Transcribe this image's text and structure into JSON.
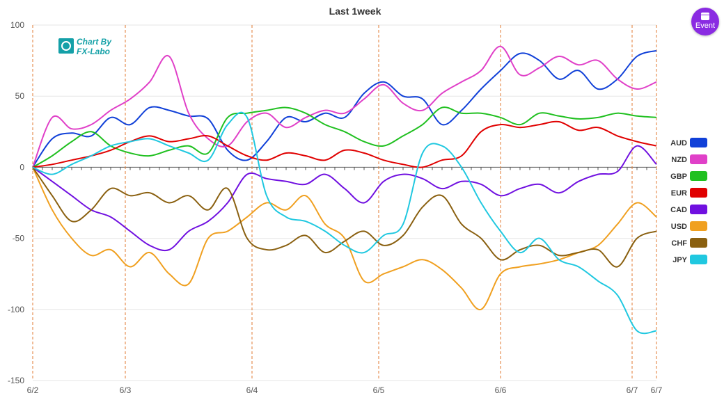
{
  "chart_data": {
    "type": "line",
    "title": "Last 1week",
    "ylim": [
      -150,
      100
    ],
    "yticks": [
      100,
      50,
      0,
      -50,
      -100,
      -150
    ],
    "xlabels": [
      "6/2",
      "6/3",
      "6/4",
      "6/5",
      "6/6",
      "6/7",
      "6/7"
    ],
    "x": [
      0,
      4,
      8,
      12,
      16,
      20,
      24,
      28,
      32,
      36,
      40,
      44,
      48,
      52,
      56,
      60,
      64,
      68,
      72,
      76,
      80,
      84,
      88,
      92,
      96,
      100,
      104,
      108,
      112,
      116,
      120,
      124,
      128
    ],
    "x_max": 128,
    "separators": [
      0,
      19,
      45,
      71,
      96,
      123,
      128
    ],
    "series": [
      {
        "name": "AUD",
        "color": "#1040d8",
        "values": [
          0,
          20,
          24,
          22,
          35,
          30,
          42,
          40,
          36,
          34,
          12,
          5,
          18,
          35,
          32,
          38,
          35,
          52,
          60,
          50,
          48,
          30,
          40,
          55,
          68,
          80,
          75,
          62,
          68,
          55,
          62,
          78,
          82
        ]
      },
      {
        "name": "NZD",
        "color": "#e040c8",
        "values": [
          0,
          35,
          27,
          30,
          40,
          48,
          60,
          78,
          38,
          20,
          15,
          32,
          38,
          28,
          35,
          40,
          38,
          48,
          58,
          45,
          40,
          52,
          60,
          68,
          85,
          65,
          70,
          78,
          72,
          75,
          62,
          55,
          60
        ]
      },
      {
        "name": "GBP",
        "color": "#20c020",
        "values": [
          0,
          8,
          18,
          25,
          15,
          10,
          8,
          12,
          15,
          10,
          35,
          38,
          40,
          42,
          38,
          30,
          25,
          18,
          15,
          22,
          30,
          42,
          38,
          38,
          35,
          30,
          38,
          36,
          34,
          35,
          38,
          36,
          35
        ]
      },
      {
        "name": "EUR",
        "color": "#e00000",
        "values": [
          0,
          2,
          5,
          8,
          12,
          18,
          22,
          18,
          20,
          22,
          15,
          8,
          5,
          10,
          8,
          5,
          12,
          10,
          5,
          2,
          0,
          5,
          8,
          25,
          30,
          28,
          30,
          32,
          26,
          28,
          22,
          18,
          15
        ]
      },
      {
        "name": "CAD",
        "color": "#7010e0",
        "values": [
          0,
          -10,
          -20,
          -30,
          -35,
          -45,
          -55,
          -58,
          -45,
          -38,
          -25,
          -5,
          -8,
          -10,
          -12,
          -5,
          -15,
          -25,
          -10,
          -5,
          -8,
          -15,
          -10,
          -12,
          -20,
          -15,
          -12,
          -18,
          -10,
          -5,
          -3,
          15,
          2
        ]
      },
      {
        "name": "USD",
        "color": "#f0a020",
        "values": [
          0,
          -30,
          -50,
          -62,
          -58,
          -70,
          -60,
          -75,
          -82,
          -50,
          -45,
          -35,
          -25,
          -30,
          -20,
          -40,
          -50,
          -80,
          -75,
          -70,
          -65,
          -72,
          -85,
          -100,
          -75,
          -70,
          -68,
          -65,
          -60,
          -55,
          -40,
          -25,
          -35
        ]
      },
      {
        "name": "CHF",
        "color": "#8a6010",
        "values": [
          0,
          -20,
          -38,
          -30,
          -15,
          -20,
          -18,
          -25,
          -20,
          -30,
          -15,
          -50,
          -58,
          -55,
          -48,
          -60,
          -52,
          -45,
          -55,
          -48,
          -28,
          -20,
          -40,
          -50,
          -65,
          -58,
          -55,
          -62,
          -60,
          -58,
          -70,
          -50,
          -45
        ]
      },
      {
        "name": "JPY",
        "color": "#20c8e0",
        "values": [
          0,
          -5,
          2,
          8,
          15,
          18,
          20,
          15,
          10,
          5,
          30,
          35,
          -20,
          -35,
          -38,
          -45,
          -55,
          -60,
          -48,
          -40,
          10,
          15,
          0,
          -25,
          -45,
          -60,
          -50,
          -65,
          -70,
          -80,
          -90,
          -115,
          -115
        ]
      }
    ]
  },
  "logo": {
    "line1": "Chart By",
    "line2": "FX-Labo"
  },
  "event_button": {
    "label": "Event",
    "icon": "calendar-icon"
  }
}
